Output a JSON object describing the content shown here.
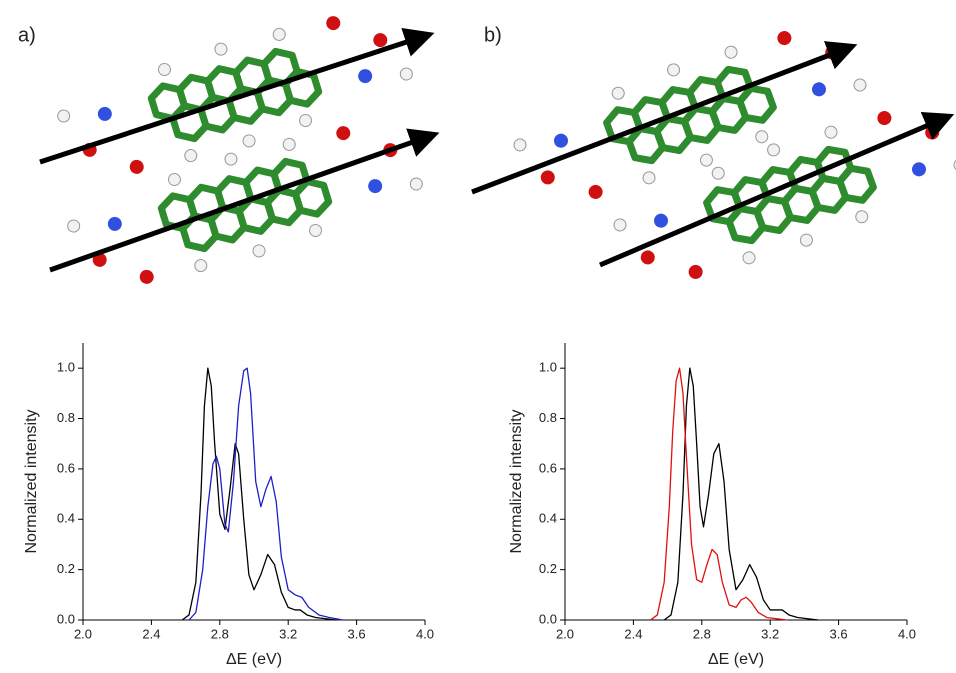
{
  "chart_data": [
    {
      "type": "line",
      "panel_label": "a)",
      "xlabel": "ΔE (eV)",
      "ylabel": "Normalized intensity",
      "xlim": [
        2.0,
        4.0
      ],
      "ylim": [
        0,
        1.1
      ],
      "xticks": [
        {
          "value": 2.0,
          "label": "2.0"
        },
        {
          "value": 2.4,
          "label": "2.4"
        },
        {
          "value": 2.8,
          "label": "2.8"
        },
        {
          "value": 3.2,
          "label": "3.2"
        },
        {
          "value": 3.6,
          "label": "3.6"
        },
        {
          "value": 4.0,
          "label": "4.0"
        }
      ],
      "yticks": [
        {
          "value": 0,
          "label": "0.0"
        },
        {
          "value": 0.2,
          "label": "0.2"
        },
        {
          "value": 0.4,
          "label": "0.4"
        },
        {
          "value": 0.6,
          "label": "0.6"
        },
        {
          "value": 0.8,
          "label": "0.8"
        },
        {
          "value": 1.0,
          "label": "1.0"
        }
      ],
      "series": [
        {
          "color": "#000000",
          "x": [
            2.58,
            2.62,
            2.66,
            2.69,
            2.71,
            2.73,
            2.75,
            2.77,
            2.8,
            2.83,
            2.86,
            2.89,
            2.91,
            2.94,
            2.97,
            3.0,
            3.04,
            3.08,
            3.12,
            3.16,
            3.2,
            3.24,
            3.27,
            3.31,
            3.36,
            3.42,
            3.48
          ],
          "values": [
            0,
            0.02,
            0.15,
            0.5,
            0.85,
            1.0,
            0.93,
            0.7,
            0.42,
            0.36,
            0.52,
            0.7,
            0.66,
            0.4,
            0.18,
            0.12,
            0.18,
            0.26,
            0.22,
            0.11,
            0.05,
            0.04,
            0.04,
            0.02,
            0.01,
            0.005,
            0
          ]
        },
        {
          "color": "#1f1fc8",
          "x": [
            2.62,
            2.66,
            2.7,
            2.73,
            2.76,
            2.78,
            2.8,
            2.83,
            2.85,
            2.88,
            2.91,
            2.94,
            2.96,
            2.98,
            3.01,
            3.04,
            3.07,
            3.1,
            3.13,
            3.16,
            3.2,
            3.24,
            3.28,
            3.32,
            3.38,
            3.44,
            3.52
          ],
          "values": [
            0,
            0.03,
            0.2,
            0.45,
            0.62,
            0.65,
            0.6,
            0.38,
            0.35,
            0.55,
            0.85,
            0.99,
            1.0,
            0.9,
            0.55,
            0.45,
            0.52,
            0.57,
            0.47,
            0.25,
            0.12,
            0.1,
            0.09,
            0.05,
            0.02,
            0.01,
            0
          ]
        }
      ]
    },
    {
      "type": "line",
      "panel_label": "b)",
      "xlabel": "ΔE (eV)",
      "ylabel": "Normalized intensity",
      "xlim": [
        2.0,
        4.0
      ],
      "ylim": [
        0,
        1.1
      ],
      "xticks": [
        {
          "value": 2.0,
          "label": "2.0"
        },
        {
          "value": 2.4,
          "label": "2.4"
        },
        {
          "value": 2.8,
          "label": "2.8"
        },
        {
          "value": 3.2,
          "label": "3.2"
        },
        {
          "value": 3.6,
          "label": "3.6"
        },
        {
          "value": 4.0,
          "label": "4.0"
        }
      ],
      "yticks": [
        {
          "value": 0,
          "label": "0.0"
        },
        {
          "value": 0.2,
          "label": "0.2"
        },
        {
          "value": 0.4,
          "label": "0.4"
        },
        {
          "value": 0.6,
          "label": "0.6"
        },
        {
          "value": 0.8,
          "label": "0.8"
        },
        {
          "value": 1.0,
          "label": "1.0"
        }
      ],
      "series": [
        {
          "color": "#000000",
          "x": [
            2.58,
            2.62,
            2.66,
            2.69,
            2.71,
            2.73,
            2.75,
            2.77,
            2.79,
            2.81,
            2.84,
            2.87,
            2.9,
            2.93,
            2.96,
            3.0,
            3.04,
            3.08,
            3.12,
            3.16,
            3.2,
            3.24,
            3.27,
            3.31,
            3.36,
            3.42,
            3.48
          ],
          "values": [
            0,
            0.02,
            0.15,
            0.5,
            0.85,
            1.0,
            0.93,
            0.7,
            0.45,
            0.37,
            0.5,
            0.66,
            0.7,
            0.55,
            0.28,
            0.12,
            0.16,
            0.22,
            0.17,
            0.08,
            0.04,
            0.04,
            0.04,
            0.02,
            0.01,
            0.005,
            0
          ]
        },
        {
          "color": "#e01010",
          "x": [
            2.5,
            2.54,
            2.58,
            2.61,
            2.63,
            2.65,
            2.67,
            2.69,
            2.71,
            2.74,
            2.77,
            2.8,
            2.83,
            2.86,
            2.89,
            2.92,
            2.96,
            3.0,
            3.03,
            3.06,
            3.09,
            3.13,
            3.18,
            3.24,
            3.3
          ],
          "values": [
            0,
            0.02,
            0.15,
            0.45,
            0.75,
            0.95,
            1.0,
            0.9,
            0.65,
            0.3,
            0.16,
            0.15,
            0.22,
            0.28,
            0.26,
            0.15,
            0.06,
            0.05,
            0.08,
            0.09,
            0.07,
            0.03,
            0.01,
            0.005,
            0
          ]
        }
      ]
    }
  ]
}
